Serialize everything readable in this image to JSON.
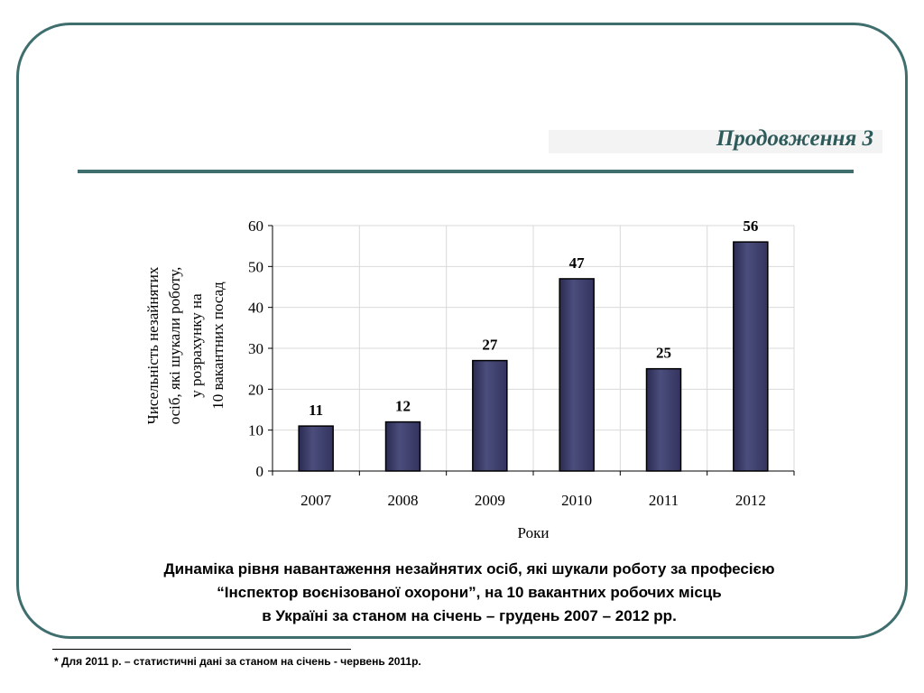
{
  "heading": "Продовження 3",
  "chart_data": {
    "type": "bar",
    "categories": [
      "2007",
      "2008",
      "2009",
      "2010",
      "2011",
      "2012"
    ],
    "values": [
      11,
      12,
      27,
      47,
      25,
      56
    ],
    "data_labels": [
      "11",
      "12",
      "27",
      "47",
      "25",
      "56"
    ],
    "xlabel": "Роки",
    "ylabel_lines": [
      "Чисельність незайнятих",
      "осіб, які шукали роботу,",
      "у розрахунку на",
      "10 вакантних посад"
    ],
    "ylim": [
      0,
      60
    ],
    "yticks": [
      0,
      10,
      20,
      30,
      40,
      50,
      60
    ],
    "grid": true,
    "bar_color": "#4b4d7c"
  },
  "caption": {
    "line1": "Динаміка рівня навантаження незайнятих осіб,  які шукали роботу за професією",
    "line2": "“Інспектор воєнізованої охорони”, на 10 вакантних робочих місць",
    "line3": "в Україні за станом на січень – грудень 2007 – 2012 рр."
  },
  "footnote": "* Для 2011 р. – статистичні дані за станом на січень - червень  2011р."
}
